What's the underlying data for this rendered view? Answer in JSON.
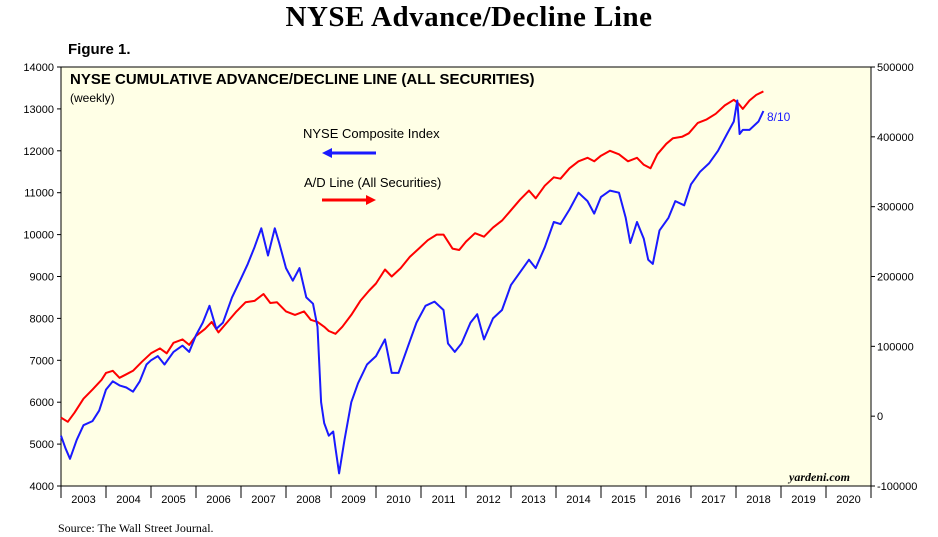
{
  "page": {
    "title": "NYSE Advance/Decline Line",
    "figure_label": "Figure 1.",
    "source": "Source: The Wall Street Journal."
  },
  "chart_data": {
    "type": "line",
    "title": "NYSE CUMULATIVE ADVANCE/DECLINE LINE (ALL SECURITIES)",
    "subtitle": "(weekly)",
    "brand": "yardeni.com",
    "latest_label": "8/10",
    "x_axis": {
      "range": [
        2003,
        2021
      ],
      "year_labels": [
        "2003",
        "2004",
        "2005",
        "2006",
        "2007",
        "2008",
        "2009",
        "2010",
        "2011",
        "2012",
        "2013",
        "2014",
        "2015",
        "2016",
        "2017",
        "2018",
        "2019",
        "2020"
      ]
    },
    "y_left": {
      "range": [
        4000,
        14000
      ],
      "ticks": [
        "4000",
        "5000",
        "6000",
        "7000",
        "8000",
        "9000",
        "10000",
        "11000",
        "12000",
        "13000",
        "14000"
      ]
    },
    "y_right": {
      "range": [
        -100000,
        500000
      ],
      "ticks": [
        "-100000",
        "0",
        "100000",
        "200000",
        "300000",
        "400000",
        "500000"
      ]
    },
    "grid": false,
    "colors": {
      "background": "#ffffe6",
      "composite": "#1a1aff",
      "ad_line": "#ff0000"
    },
    "series": [
      {
        "name": "NYSE Composite Index",
        "axis": "left",
        "color": "#1a1aff",
        "points": [
          [
            2003.0,
            5200
          ],
          [
            2003.1,
            4900
          ],
          [
            2003.2,
            4650
          ],
          [
            2003.35,
            5100
          ],
          [
            2003.5,
            5450
          ],
          [
            2003.7,
            5550
          ],
          [
            2003.85,
            5800
          ],
          [
            2004.0,
            6300
          ],
          [
            2004.15,
            6500
          ],
          [
            2004.3,
            6400
          ],
          [
            2004.45,
            6350
          ],
          [
            2004.6,
            6250
          ],
          [
            2004.75,
            6500
          ],
          [
            2004.9,
            6900
          ],
          [
            2005.0,
            7000
          ],
          [
            2005.15,
            7100
          ],
          [
            2005.3,
            6900
          ],
          [
            2005.5,
            7200
          ],
          [
            2005.7,
            7350
          ],
          [
            2005.85,
            7200
          ],
          [
            2006.0,
            7600
          ],
          [
            2006.15,
            7900
          ],
          [
            2006.3,
            8300
          ],
          [
            2006.45,
            7750
          ],
          [
            2006.6,
            7900
          ],
          [
            2006.8,
            8500
          ],
          [
            2007.0,
            8950
          ],
          [
            2007.15,
            9300
          ],
          [
            2007.3,
            9700
          ],
          [
            2007.45,
            10150
          ],
          [
            2007.6,
            9500
          ],
          [
            2007.75,
            10150
          ],
          [
            2007.85,
            9800
          ],
          [
            2008.0,
            9200
          ],
          [
            2008.15,
            8900
          ],
          [
            2008.3,
            9200
          ],
          [
            2008.45,
            8500
          ],
          [
            2008.6,
            8350
          ],
          [
            2008.7,
            7800
          ],
          [
            2008.78,
            6000
          ],
          [
            2008.85,
            5500
          ],
          [
            2008.95,
            5200
          ],
          [
            2009.05,
            5300
          ],
          [
            2009.1,
            4900
          ],
          [
            2009.18,
            4300
          ],
          [
            2009.3,
            5100
          ],
          [
            2009.45,
            6000
          ],
          [
            2009.6,
            6450
          ],
          [
            2009.8,
            6900
          ],
          [
            2010.0,
            7100
          ],
          [
            2010.2,
            7500
          ],
          [
            2010.35,
            6700
          ],
          [
            2010.5,
            6700
          ],
          [
            2010.7,
            7300
          ],
          [
            2010.9,
            7900
          ],
          [
            2011.1,
            8300
          ],
          [
            2011.3,
            8400
          ],
          [
            2011.5,
            8200
          ],
          [
            2011.6,
            7400
          ],
          [
            2011.75,
            7200
          ],
          [
            2011.9,
            7400
          ],
          [
            2012.1,
            7900
          ],
          [
            2012.25,
            8100
          ],
          [
            2012.4,
            7500
          ],
          [
            2012.6,
            8000
          ],
          [
            2012.8,
            8200
          ],
          [
            2013.0,
            8800
          ],
          [
            2013.2,
            9100
          ],
          [
            2013.4,
            9400
          ],
          [
            2013.55,
            9200
          ],
          [
            2013.75,
            9700
          ],
          [
            2013.95,
            10300
          ],
          [
            2014.1,
            10250
          ],
          [
            2014.3,
            10600
          ],
          [
            2014.5,
            11000
          ],
          [
            2014.7,
            10800
          ],
          [
            2014.85,
            10500
          ],
          [
            2015.0,
            10900
          ],
          [
            2015.2,
            11050
          ],
          [
            2015.4,
            11000
          ],
          [
            2015.55,
            10400
          ],
          [
            2015.65,
            9800
          ],
          [
            2015.8,
            10300
          ],
          [
            2015.95,
            9900
          ],
          [
            2016.05,
            9400
          ],
          [
            2016.15,
            9300
          ],
          [
            2016.3,
            10100
          ],
          [
            2016.5,
            10400
          ],
          [
            2016.65,
            10800
          ],
          [
            2016.85,
            10700
          ],
          [
            2017.0,
            11200
          ],
          [
            2017.2,
            11500
          ],
          [
            2017.4,
            11700
          ],
          [
            2017.6,
            12000
          ],
          [
            2017.8,
            12400
          ],
          [
            2017.95,
            12700
          ],
          [
            2018.03,
            13200
          ],
          [
            2018.08,
            12400
          ],
          [
            2018.15,
            12500
          ],
          [
            2018.3,
            12500
          ],
          [
            2018.5,
            12700
          ],
          [
            2018.61,
            12950
          ]
        ]
      },
      {
        "name": "A/D Line (All Securities)",
        "axis": "right",
        "color": "#ff0000",
        "points": [
          [
            2003.0,
            -2000
          ],
          [
            2003.15,
            -8000
          ],
          [
            2003.3,
            5000
          ],
          [
            2003.5,
            25000
          ],
          [
            2003.7,
            38000
          ],
          [
            2003.9,
            52000
          ],
          [
            2004.0,
            62000
          ],
          [
            2004.15,
            65000
          ],
          [
            2004.3,
            55000
          ],
          [
            2004.45,
            60000
          ],
          [
            2004.6,
            65000
          ],
          [
            2004.8,
            78000
          ],
          [
            2005.0,
            90000
          ],
          [
            2005.2,
            97000
          ],
          [
            2005.35,
            90000
          ],
          [
            2005.5,
            105000
          ],
          [
            2005.7,
            110000
          ],
          [
            2005.85,
            102000
          ],
          [
            2006.0,
            115000
          ],
          [
            2006.2,
            125000
          ],
          [
            2006.35,
            135000
          ],
          [
            2006.5,
            120000
          ],
          [
            2006.7,
            135000
          ],
          [
            2006.9,
            150000
          ],
          [
            2007.1,
            163000
          ],
          [
            2007.3,
            165000
          ],
          [
            2007.5,
            175000
          ],
          [
            2007.65,
            162000
          ],
          [
            2007.8,
            163000
          ],
          [
            2008.0,
            150000
          ],
          [
            2008.2,
            145000
          ],
          [
            2008.4,
            150000
          ],
          [
            2008.55,
            138000
          ],
          [
            2008.7,
            135000
          ],
          [
            2008.85,
            128000
          ],
          [
            2008.95,
            122000
          ],
          [
            2009.1,
            118000
          ],
          [
            2009.25,
            128000
          ],
          [
            2009.45,
            145000
          ],
          [
            2009.65,
            165000
          ],
          [
            2009.85,
            180000
          ],
          [
            2010.0,
            190000
          ],
          [
            2010.2,
            210000
          ],
          [
            2010.35,
            200000
          ],
          [
            2010.55,
            212000
          ],
          [
            2010.75,
            228000
          ],
          [
            2010.95,
            240000
          ],
          [
            2011.15,
            252000
          ],
          [
            2011.35,
            260000
          ],
          [
            2011.5,
            260000
          ],
          [
            2011.7,
            240000
          ],
          [
            2011.85,
            238000
          ],
          [
            2012.0,
            250000
          ],
          [
            2012.2,
            262000
          ],
          [
            2012.4,
            257000
          ],
          [
            2012.6,
            270000
          ],
          [
            2012.8,
            280000
          ],
          [
            2013.0,
            295000
          ],
          [
            2013.2,
            310000
          ],
          [
            2013.4,
            323000
          ],
          [
            2013.55,
            312000
          ],
          [
            2013.75,
            330000
          ],
          [
            2013.95,
            342000
          ],
          [
            2014.1,
            340000
          ],
          [
            2014.3,
            355000
          ],
          [
            2014.5,
            365000
          ],
          [
            2014.7,
            370000
          ],
          [
            2014.85,
            365000
          ],
          [
            2015.0,
            373000
          ],
          [
            2015.2,
            380000
          ],
          [
            2015.4,
            375000
          ],
          [
            2015.6,
            365000
          ],
          [
            2015.8,
            370000
          ],
          [
            2015.95,
            360000
          ],
          [
            2016.1,
            355000
          ],
          [
            2016.25,
            375000
          ],
          [
            2016.45,
            390000
          ],
          [
            2016.6,
            398000
          ],
          [
            2016.8,
            400000
          ],
          [
            2016.95,
            405000
          ],
          [
            2017.15,
            420000
          ],
          [
            2017.35,
            425000
          ],
          [
            2017.55,
            433000
          ],
          [
            2017.75,
            445000
          ],
          [
            2017.95,
            453000
          ],
          [
            2018.05,
            448000
          ],
          [
            2018.15,
            440000
          ],
          [
            2018.3,
            452000
          ],
          [
            2018.45,
            460000
          ],
          [
            2018.61,
            465000
          ]
        ]
      }
    ]
  }
}
